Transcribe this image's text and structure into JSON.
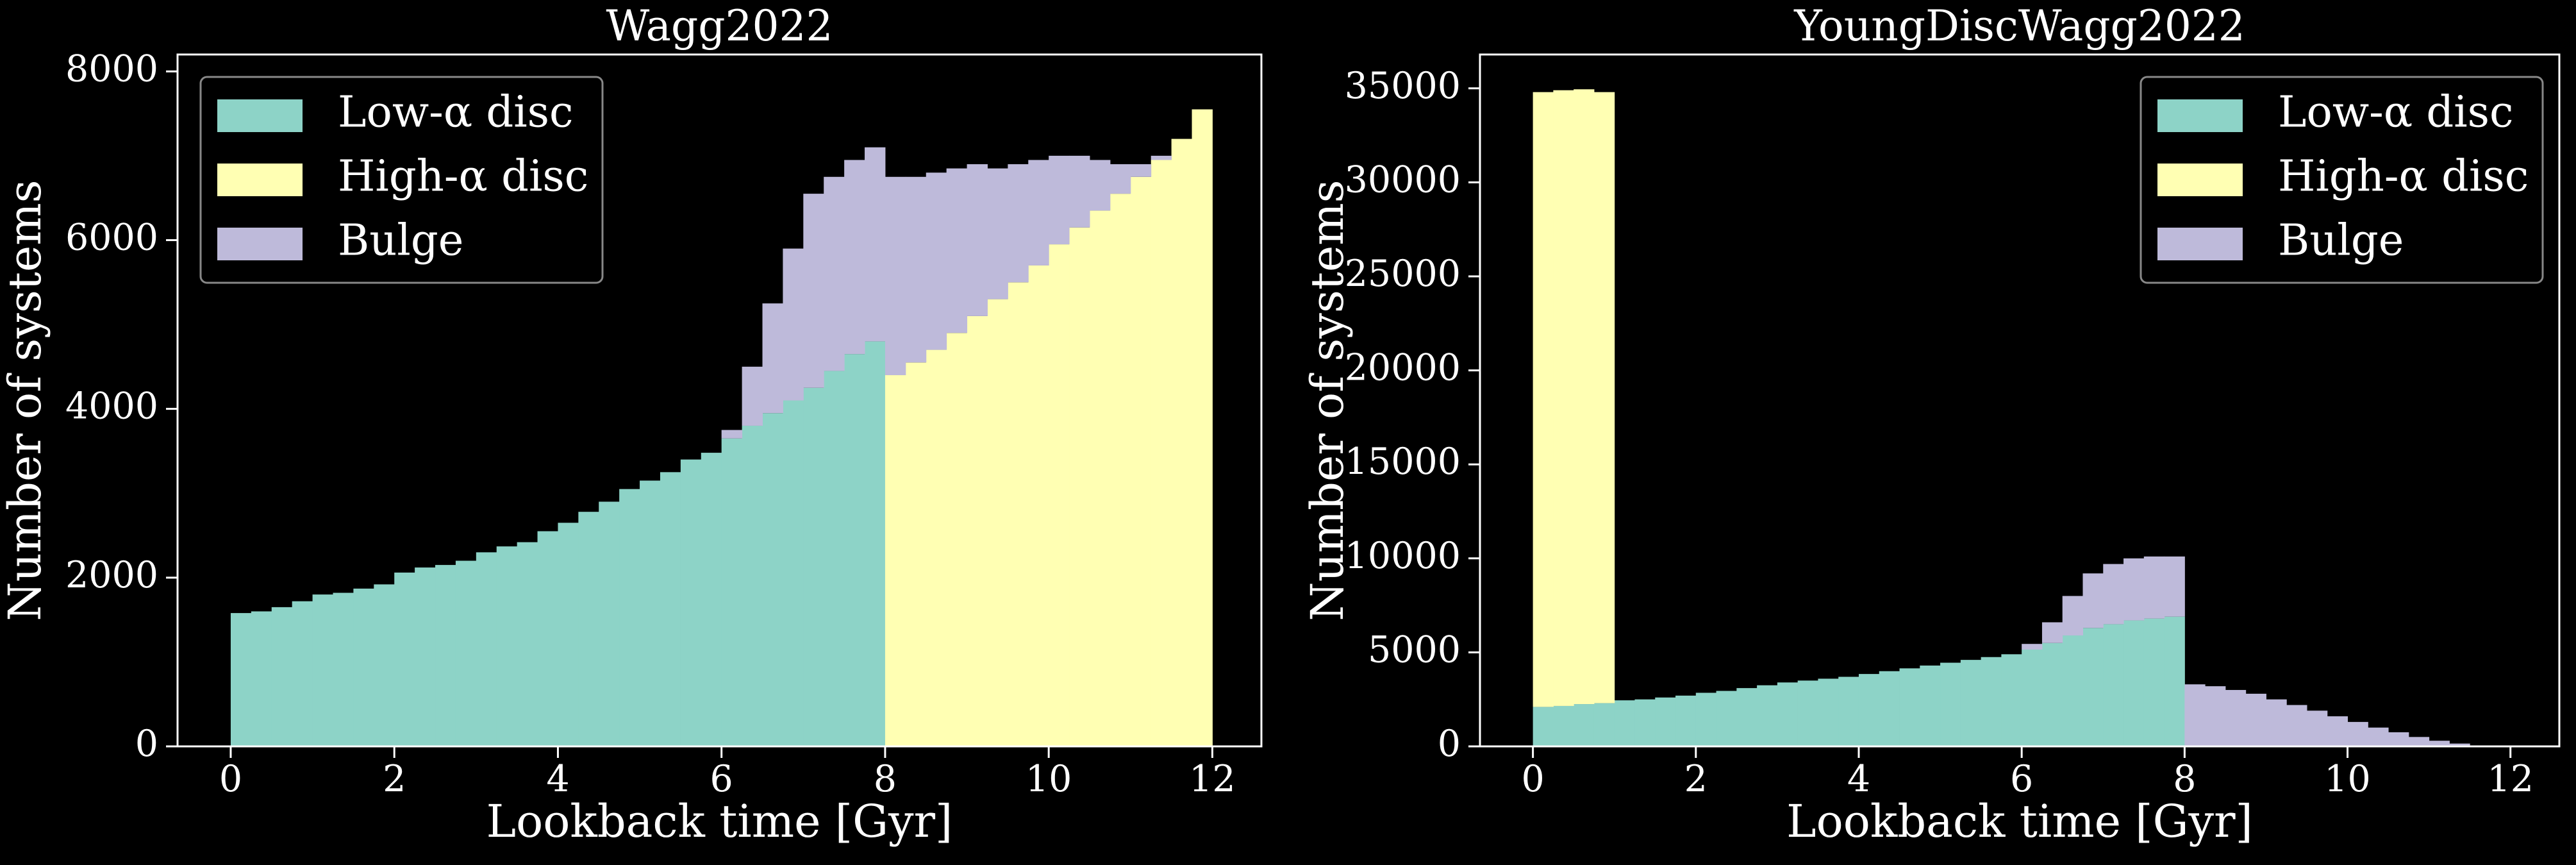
{
  "chart_data": [
    {
      "type": "histogram",
      "stacked": true,
      "title": "Wagg2022",
      "x_label": "Lookback time [Gyr]",
      "y_label": "Number of systems",
      "bins": [
        0,
        0.25,
        0.5,
        0.75,
        1,
        1.25,
        1.5,
        1.75,
        2,
        2.25,
        2.5,
        2.75,
        3,
        3.25,
        3.5,
        3.75,
        4,
        4.25,
        4.5,
        4.75,
        5,
        5.25,
        5.5,
        5.75,
        6,
        6.25,
        6.5,
        6.75,
        7,
        7.25,
        7.5,
        7.75,
        8,
        8.25,
        8.5,
        8.75,
        9,
        9.25,
        9.5,
        9.75,
        10,
        10.25,
        10.5,
        10.75,
        11,
        11.25,
        11.5,
        11.75,
        12
      ],
      "series": [
        {
          "name": "Low-α disc",
          "color": "#8dd3c7",
          "values": [
            1580,
            1600,
            1650,
            1720,
            1800,
            1820,
            1870,
            1920,
            2060,
            2120,
            2150,
            2200,
            2300,
            2370,
            2420,
            2550,
            2650,
            2780,
            2900,
            3050,
            3150,
            3250,
            3400,
            3480,
            3650,
            3800,
            3950,
            4100,
            4250,
            4450,
            4650,
            4800,
            0,
            0,
            0,
            0,
            0,
            0,
            0,
            0,
            0,
            0,
            0,
            0,
            0,
            0,
            0,
            0
          ]
        },
        {
          "name": "High-α disc",
          "color": "#ffffb3",
          "values": [
            0,
            0,
            0,
            0,
            0,
            0,
            0,
            0,
            0,
            0,
            0,
            0,
            0,
            0,
            0,
            0,
            0,
            0,
            0,
            0,
            0,
            0,
            0,
            0,
            0,
            0,
            0,
            0,
            0,
            0,
            0,
            0,
            4400,
            4550,
            4700,
            4900,
            5100,
            5300,
            5500,
            5700,
            5950,
            6150,
            6350,
            6550,
            6750,
            6950,
            7200,
            7550
          ]
        },
        {
          "name": "Bulge",
          "color": "#bebada",
          "values": [
            0,
            0,
            0,
            0,
            0,
            0,
            0,
            0,
            0,
            0,
            0,
            0,
            0,
            0,
            0,
            0,
            0,
            0,
            0,
            0,
            0,
            0,
            0,
            0,
            100,
            700,
            1300,
            1800,
            2300,
            2300,
            2300,
            2300,
            2350,
            2200,
            2100,
            1950,
            1800,
            1550,
            1400,
            1250,
            1050,
            850,
            600,
            350,
            150,
            50,
            0,
            0
          ]
        }
      ],
      "xlim": [
        -0.65,
        12.6
      ],
      "xticks": [
        0,
        2,
        4,
        6,
        8,
        10,
        12
      ],
      "ylim": [
        0,
        8200
      ],
      "yticks": [
        0,
        2000,
        4000,
        6000,
        8000
      ],
      "legend": "upper left"
    },
    {
      "type": "histogram",
      "stacked": true,
      "title": "YoungDiscWagg2022",
      "x_label": "Lookback time [Gyr]",
      "y_label": "Number of systems",
      "bins": [
        0,
        0.25,
        0.5,
        0.75,
        1,
        1.25,
        1.5,
        1.75,
        2,
        2.25,
        2.5,
        2.75,
        3,
        3.25,
        3.5,
        3.75,
        4,
        4.25,
        4.5,
        4.75,
        5,
        5.25,
        5.5,
        5.75,
        6,
        6.25,
        6.5,
        6.75,
        7,
        7.25,
        7.5,
        7.75,
        8,
        8.25,
        8.5,
        8.75,
        9,
        9.25,
        9.5,
        9.75,
        10,
        10.25,
        10.5,
        10.75,
        11,
        11.25,
        11.5,
        11.75,
        12
      ],
      "series": [
        {
          "name": "Low-α disc",
          "color": "#8dd3c7",
          "values": [
            2100,
            2150,
            2250,
            2300,
            2450,
            2500,
            2600,
            2700,
            2850,
            2950,
            3100,
            3250,
            3400,
            3500,
            3600,
            3700,
            3850,
            4000,
            4150,
            4300,
            4450,
            4600,
            4750,
            4900,
            5150,
            5500,
            5900,
            6300,
            6500,
            6700,
            6800,
            6900,
            0,
            0,
            0,
            0,
            0,
            0,
            0,
            0,
            0,
            0,
            0,
            0,
            0,
            0,
            0,
            0
          ]
        },
        {
          "name": "High-α disc",
          "color": "#ffffb3",
          "values": [
            32700,
            32750,
            32700,
            32500,
            0,
            0,
            0,
            0,
            0,
            0,
            0,
            0,
            0,
            0,
            0,
            0,
            0,
            0,
            0,
            0,
            0,
            0,
            0,
            0,
            0,
            0,
            0,
            0,
            0,
            0,
            0,
            0,
            0,
            0,
            0,
            0,
            0,
            0,
            0,
            0,
            0,
            0,
            0,
            0,
            0,
            0,
            0,
            0
          ]
        },
        {
          "name": "Bulge",
          "color": "#bebada",
          "values": [
            0,
            0,
            0,
            0,
            0,
            0,
            0,
            0,
            0,
            0,
            0,
            0,
            0,
            0,
            0,
            0,
            0,
            0,
            0,
            0,
            0,
            0,
            0,
            0,
            300,
            1100,
            2100,
            2900,
            3200,
            3300,
            3300,
            3200,
            3300,
            3200,
            3000,
            2800,
            2500,
            2200,
            1900,
            1600,
            1300,
            1000,
            750,
            500,
            300,
            150,
            50,
            10
          ]
        }
      ],
      "xlim": [
        -0.65,
        12.6
      ],
      "xticks": [
        0,
        2,
        4,
        6,
        8,
        10,
        12
      ],
      "ylim": [
        0,
        36800
      ],
      "yticks": [
        0,
        5000,
        10000,
        15000,
        20000,
        25000,
        30000,
        35000
      ],
      "legend": "upper right"
    }
  ]
}
